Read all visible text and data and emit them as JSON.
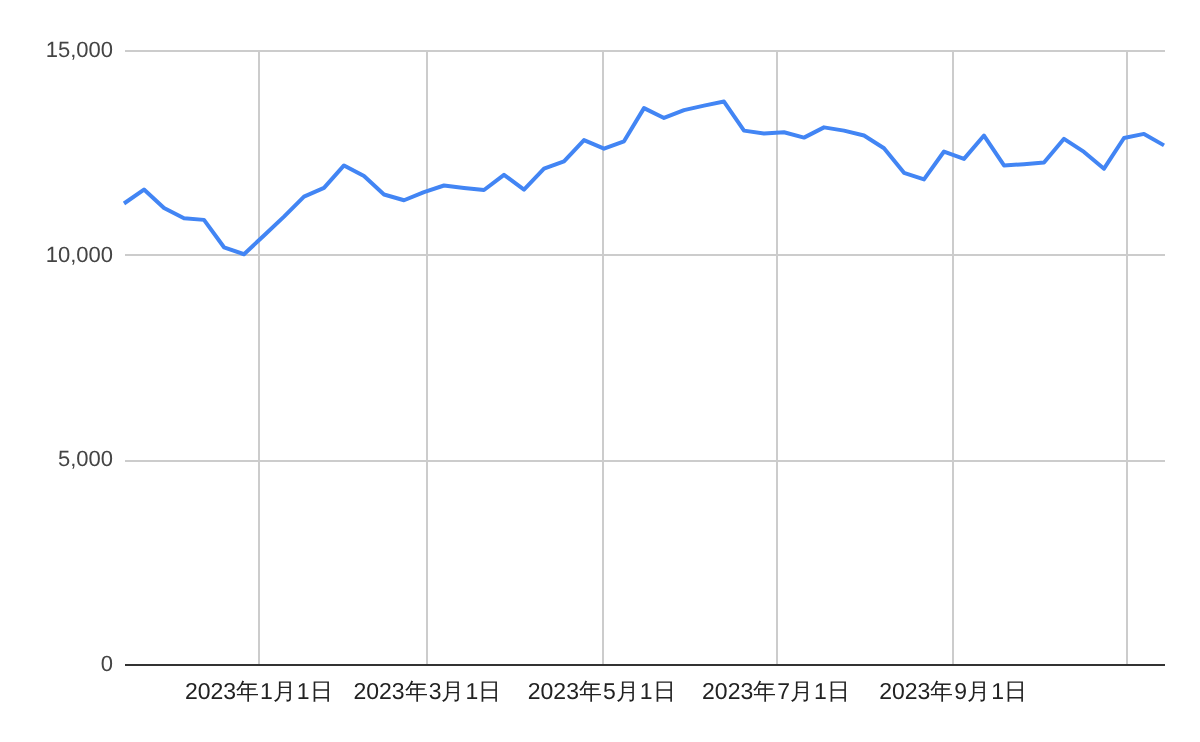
{
  "chart_data": {
    "type": "line",
    "x": [
      "2022-11-15",
      "2022-11-22",
      "2022-11-29",
      "2022-12-06",
      "2022-12-13",
      "2022-12-20",
      "2022-12-27",
      "2023-01-03",
      "2023-01-10",
      "2023-01-17",
      "2023-01-24",
      "2023-01-31",
      "2023-02-07",
      "2023-02-14",
      "2023-02-21",
      "2023-02-28",
      "2023-03-07",
      "2023-03-14",
      "2023-03-21",
      "2023-03-28",
      "2023-04-04",
      "2023-04-11",
      "2023-04-18",
      "2023-04-25",
      "2023-05-02",
      "2023-05-09",
      "2023-05-16",
      "2023-05-23",
      "2023-05-30",
      "2023-06-06",
      "2023-06-13",
      "2023-06-20",
      "2023-06-27",
      "2023-07-04",
      "2023-07-11",
      "2023-07-18",
      "2023-07-25",
      "2023-08-01",
      "2023-08-08",
      "2023-08-15",
      "2023-08-22",
      "2023-08-29",
      "2023-09-05",
      "2023-09-12",
      "2023-09-19",
      "2023-09-26",
      "2023-10-03",
      "2023-10-10",
      "2023-10-17",
      "2023-10-24",
      "2023-10-31",
      "2023-11-07",
      "2023-11-14"
    ],
    "series": [
      {
        "color": "#4285f4",
        "values": [
          11250,
          11590,
          11140,
          10890,
          10850,
          10180,
          10010,
          10470,
          10930,
          11420,
          11630,
          12180,
          11920,
          11470,
          11330,
          11530,
          11690,
          11630,
          11580,
          11950,
          11590,
          12100,
          12280,
          12800,
          12590,
          12770,
          13580,
          13340,
          13530,
          13640,
          13740,
          13030,
          12960,
          12990,
          12860,
          13110,
          13030,
          12910,
          12600,
          12000,
          11840,
          12520,
          12340,
          12910,
          12180,
          12210,
          12250,
          12830,
          12510,
          12100,
          12850,
          12950,
          12670
        ]
      }
    ],
    "xlim": [
      "2022-11-15",
      "2023-11-14"
    ],
    "xticks": [
      {
        "value": "2023-01-01",
        "label": "2023年1月1日"
      },
      {
        "value": "2023-03-01",
        "label": "2023年3月1日"
      },
      {
        "value": "2023-05-01",
        "label": "2023年5月1日"
      },
      {
        "value": "2023-07-01",
        "label": "2023年7月1日"
      },
      {
        "value": "2023-09-01",
        "label": "2023年9月1日"
      },
      {
        "value": "2023-11-01",
        "label": null
      }
    ],
    "ylim": [
      0,
      15000
    ],
    "yticks": [
      {
        "value": 0,
        "label": "0"
      },
      {
        "value": 5000,
        "label": "5,000"
      },
      {
        "value": 10000,
        "label": "10,000"
      },
      {
        "value": 15000,
        "label": "15,000"
      }
    ],
    "grid": true,
    "marker": "none",
    "line_style": "solid"
  }
}
